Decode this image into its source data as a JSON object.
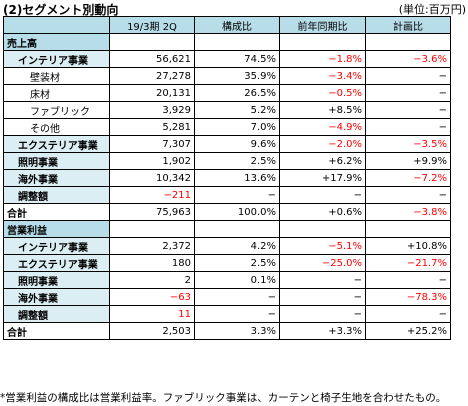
{
  "title": "(2)セグメント別動向",
  "unit": "(単位:百万円)",
  "columns": [
    "19/3期 2Q",
    "構成比",
    "前年同期比",
    "計画比"
  ],
  "rows": [
    {
      "label": "売上高",
      "style": "sec",
      "cells": [
        "",
        "",
        "",
        ""
      ],
      "neg": [
        false,
        false,
        false,
        false
      ]
    },
    {
      "label": "インテリア事業",
      "style": "l1",
      "cells": [
        "56,621",
        "74.5%",
        "−1.8%",
        "−3.6%"
      ],
      "neg": [
        false,
        false,
        true,
        true
      ]
    },
    {
      "label": "壁装材",
      "style": "l2",
      "cells": [
        "27,278",
        "35.9%",
        "−3.4%",
        "−"
      ],
      "neg": [
        false,
        false,
        true,
        false
      ]
    },
    {
      "label": "床材",
      "style": "l2",
      "cells": [
        "20,131",
        "26.5%",
        "−0.5%",
        "−"
      ],
      "neg": [
        false,
        false,
        true,
        false
      ]
    },
    {
      "label": "ファブリック",
      "style": "l2",
      "cells": [
        "3,929",
        "5.2%",
        "+8.5%",
        "−"
      ],
      "neg": [
        false,
        false,
        false,
        false
      ]
    },
    {
      "label": "その他",
      "style": "l2",
      "cells": [
        "5,281",
        "7.0%",
        "−4.9%",
        "−"
      ],
      "neg": [
        false,
        false,
        true,
        false
      ]
    },
    {
      "label": "エクステリア事業",
      "style": "l1",
      "cells": [
        "7,307",
        "9.6%",
        "−2.0%",
        "−3.5%"
      ],
      "neg": [
        false,
        false,
        true,
        true
      ]
    },
    {
      "label": "照明事業",
      "style": "l1",
      "cells": [
        "1,902",
        "2.5%",
        "+6.2%",
        "+9.9%"
      ],
      "neg": [
        false,
        false,
        false,
        false
      ]
    },
    {
      "label": "海外事業",
      "style": "l1",
      "cells": [
        "10,342",
        "13.6%",
        "+17.9%",
        "−7.2%"
      ],
      "neg": [
        false,
        false,
        false,
        true
      ]
    },
    {
      "label": "調整額",
      "style": "l1",
      "cells": [
        "−211",
        "−",
        "−",
        "−"
      ],
      "neg": [
        true,
        false,
        false,
        false
      ]
    },
    {
      "label": "合計",
      "style": "tot",
      "cells": [
        "75,963",
        "100.0%",
        "+0.6%",
        "−3.8%"
      ],
      "neg": [
        false,
        false,
        false,
        true
      ]
    },
    {
      "label": "営業利益",
      "style": "sec",
      "cells": [
        "",
        "",
        "",
        ""
      ],
      "neg": [
        false,
        false,
        false,
        false
      ]
    },
    {
      "label": "インテリア事業",
      "style": "l1",
      "cells": [
        "2,372",
        "4.2%",
        "−5.1%",
        "+10.8%"
      ],
      "neg": [
        false,
        false,
        true,
        false
      ]
    },
    {
      "label": "エクステリア事業",
      "style": "l1",
      "cells": [
        "180",
        "2.5%",
        "−25.0%",
        "−21.7%"
      ],
      "neg": [
        false,
        false,
        true,
        true
      ]
    },
    {
      "label": "照明事業",
      "style": "l1",
      "cells": [
        "2",
        "0.1%",
        "−",
        "−"
      ],
      "neg": [
        false,
        false,
        false,
        false
      ]
    },
    {
      "label": "海外事業",
      "style": "l1",
      "cells": [
        "−63",
        "−",
        "−",
        "−78.3%"
      ],
      "neg": [
        true,
        false,
        false,
        true
      ]
    },
    {
      "label": "調整額",
      "style": "l1",
      "cells": [
        "11",
        "−",
        "−",
        "−"
      ],
      "neg": [
        true,
        false,
        false,
        false
      ]
    },
    {
      "label": "合計",
      "style": "tot",
      "cells": [
        "2,503",
        "3.3%",
        "+3.3%",
        "+25.2%"
      ],
      "neg": [
        false,
        false,
        false,
        false
      ]
    }
  ],
  "footnote": "*営業利益の構成比は営業利益率。ファブリック事業は、カーテンと椅子生地を合わせたもの。"
}
